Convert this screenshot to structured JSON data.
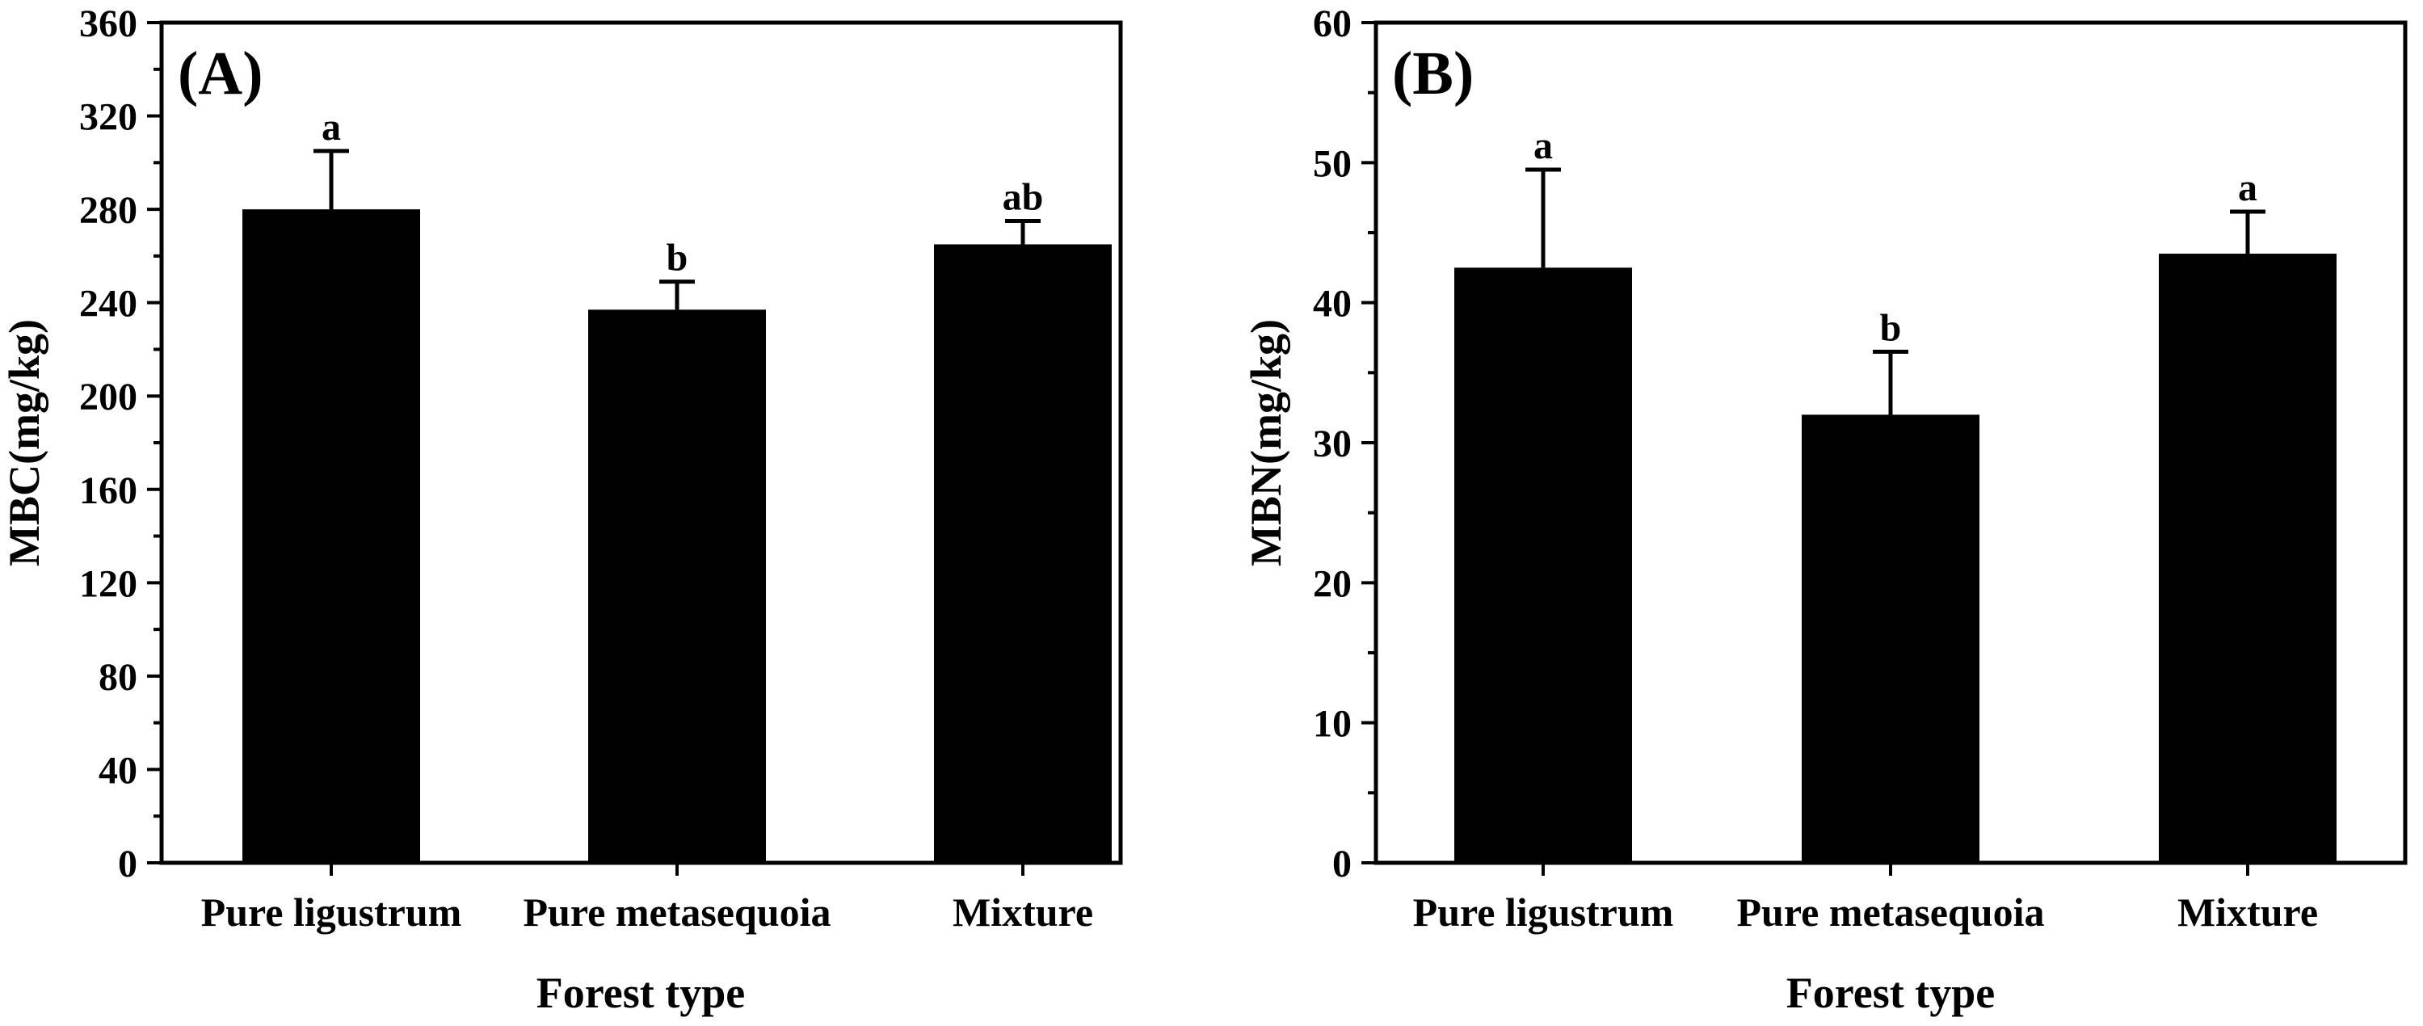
{
  "chart_data": [
    {
      "type": "bar",
      "panel_label": "(A)",
      "categories": [
        "Pure ligustrum",
        "Pure metasequoia",
        "Mixture"
      ],
      "values": [
        280,
        237,
        265
      ],
      "errors": [
        25,
        12,
        10
      ],
      "significance": [
        "a",
        "b",
        "ab"
      ],
      "xlabel": "Forest type",
      "ylabel": "MBC(mg/kg)",
      "ylim": [
        0,
        360
      ],
      "yticks": [
        0,
        40,
        80,
        120,
        160,
        200,
        240,
        280,
        320,
        360
      ],
      "bar_color": "#000000"
    },
    {
      "type": "bar",
      "panel_label": "(B)",
      "categories": [
        "Pure ligustrum",
        "Pure metasequoia",
        "Mixture"
      ],
      "values": [
        42.5,
        32,
        43.5
      ],
      "errors": [
        7,
        4.5,
        3
      ],
      "significance": [
        "a",
        "b",
        "a"
      ],
      "xlabel": "Forest type",
      "ylabel": "MBN(mg/kg)",
      "ylim": [
        0,
        60
      ],
      "yticks": [
        0,
        10,
        20,
        30,
        40,
        50,
        60
      ],
      "bar_color": "#000000"
    }
  ]
}
